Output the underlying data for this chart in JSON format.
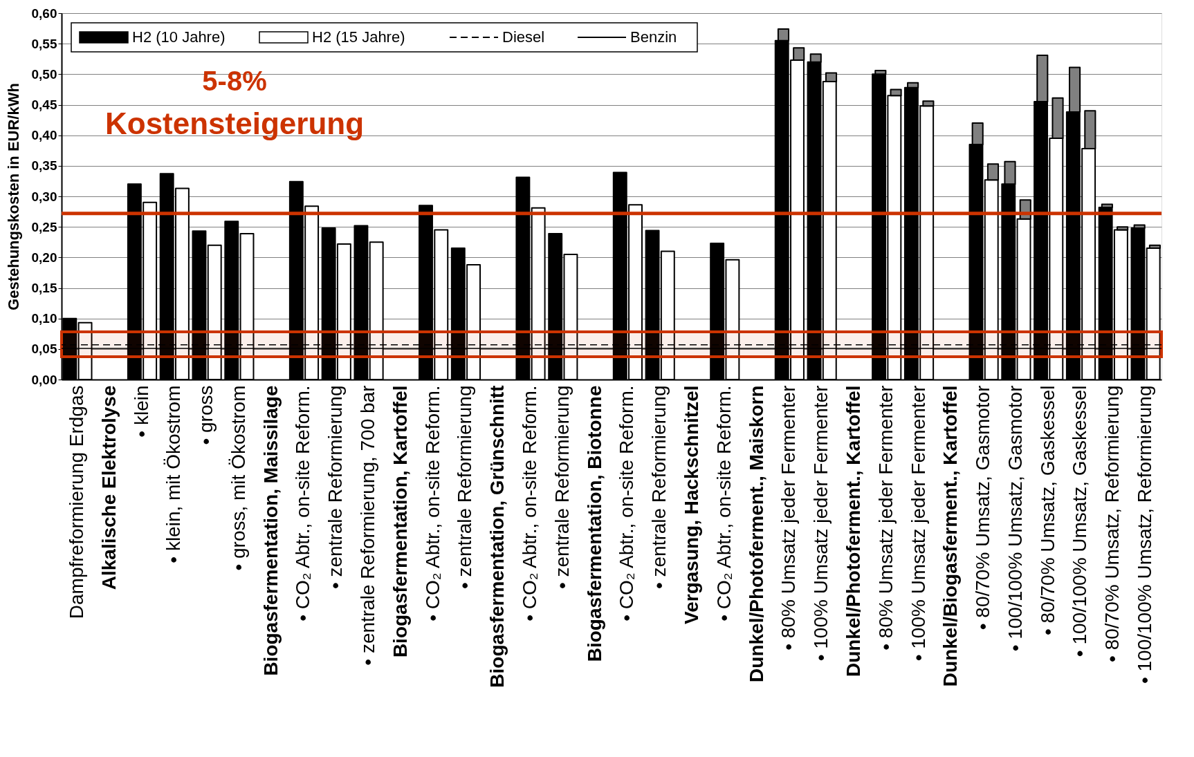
{
  "chart_data": {
    "type": "bar",
    "ylabel": "Gestehungskosten   in EUR/kWh",
    "categories": [
      "Dampfreformierung Erdgas",
      "Alkalische Elektrolyse",
      "• klein",
      "• klein, mit Ökostrom",
      "• gross",
      "• gross, mit Ökostrom",
      "Biogasfermentation, Maissilage",
      "• CO₂ Abtr., on-site Reform.",
      "• zentrale Reformierung",
      "• zentrale Reformierung, 700 bar",
      "Biogasfermentation, Kartoffel",
      "• CO₂ Abtr., on-site Reform.",
      "• zentrale Reformierung",
      "Biogasfermentation, Grünschnitt",
      "• CO₂ Abtr., on-site Reform.",
      "• zentrale Reformierung",
      "Biogasfermentation, Biotonne",
      "• CO₂ Abtr., on-site Reform.",
      "• zentrale Reformierung",
      "Vergasung, Hackschnitzel",
      "• CO₂ Abtr., on-site Reform.",
      "Dunkel/Photoferment., Maiskorn",
      "• 80% Umsatz jeder Fermenter",
      "• 100% Umsatz jeder Fermenter",
      "Dunkel/Photoferment., Kartoffel",
      "• 80% Umsatz jeder Fermenter",
      "• 100% Umsatz jeder Fermenter",
      "Dunkel/Biogasferment., Kartoffel",
      "• 80/70% Umsatz, Gasmotor",
      "• 100/100% Umsatz, Gasmotor",
      "• 80/70% Umsatz, Gaskessel",
      "• 100/100% Umsatz, Gaskessel",
      "• 80/70% Umsatz, Reformierung",
      "• 100/100% Umsatz, Reformierung"
    ],
    "series": [
      {
        "name": "H2 (10 Jahre)",
        "color": "#000000",
        "values": [
          0.1,
          null,
          0.32,
          0.337,
          0.243,
          0.259,
          null,
          0.324,
          0.248,
          0.252,
          null,
          0.285,
          0.215,
          null,
          0.331,
          0.239,
          null,
          0.339,
          0.244,
          null,
          0.223,
          null,
          0.555,
          0.52,
          null,
          0.5,
          0.478,
          null,
          0.385,
          0.32,
          0.455,
          0.438,
          0.282,
          0.248
        ]
      },
      {
        "color": "#808080",
        "values": [
          null,
          null,
          null,
          null,
          null,
          null,
          null,
          null,
          null,
          null,
          null,
          null,
          null,
          null,
          null,
          null,
          null,
          null,
          null,
          null,
          null,
          null,
          0.019,
          0.013,
          null,
          0.006,
          0.008,
          null,
          0.035,
          0.037,
          0.076,
          0.073,
          0.005,
          0.005
        ],
        "base": [
          null,
          null,
          null,
          null,
          null,
          null,
          null,
          null,
          null,
          null,
          null,
          null,
          null,
          null,
          null,
          null,
          null,
          null,
          null,
          null,
          null,
          null,
          0.555,
          0.52,
          null,
          0.5,
          0.478,
          null,
          0.385,
          0.32,
          0.455,
          0.438,
          0.282,
          0.248
        ]
      },
      {
        "name": "H2 (15 Jahre)",
        "color": "#ffffff",
        "values": [
          0.093,
          null,
          0.29,
          0.313,
          0.22,
          0.239,
          null,
          0.284,
          0.222,
          0.225,
          null,
          0.245,
          0.188,
          null,
          0.281,
          0.205,
          null,
          0.286,
          0.21,
          null,
          0.196,
          null,
          0.523,
          0.488,
          null,
          0.465,
          0.448,
          null,
          0.327,
          0.263,
          0.395,
          0.378,
          0.245,
          0.215
        ]
      },
      {
        "color": "#808080",
        "values": [
          null,
          null,
          null,
          null,
          null,
          null,
          null,
          null,
          null,
          null,
          null,
          null,
          null,
          null,
          null,
          null,
          null,
          null,
          null,
          null,
          null,
          null,
          0.02,
          0.014,
          null,
          0.01,
          0.008,
          null,
          0.026,
          0.031,
          0.066,
          0.062,
          0.005,
          0.005
        ],
        "base": [
          null,
          null,
          null,
          null,
          null,
          null,
          null,
          null,
          null,
          null,
          null,
          null,
          null,
          null,
          null,
          null,
          null,
          null,
          null,
          null,
          null,
          null,
          0.523,
          0.488,
          null,
          0.465,
          0.448,
          null,
          0.327,
          0.263,
          0.395,
          0.378,
          0.245,
          0.215
        ]
      }
    ],
    "ylim": [
      0,
      0.6
    ],
    "yticks": [
      {
        "value": 0,
        "label": "0,00"
      },
      {
        "value": 0.05,
        "label": "0,05"
      },
      {
        "value": 0.1,
        "label": "0,10"
      },
      {
        "value": 0.15,
        "label": "0,15"
      },
      {
        "value": 0.2,
        "label": "0,20"
      },
      {
        "value": 0.25,
        "label": "0,25"
      },
      {
        "value": 0.3,
        "label": "0,30"
      },
      {
        "value": 0.35,
        "label": "0,35"
      },
      {
        "value": 0.4,
        "label": "0,40"
      },
      {
        "value": 0.45,
        "label": "0,45"
      },
      {
        "value": 0.5,
        "label": "0,50"
      },
      {
        "value": 0.55,
        "label": "0,55"
      },
      {
        "value": 0.6,
        "label": "0,60"
      }
    ],
    "ref_lines": [
      {
        "axis": "y",
        "value": 0.057,
        "label": "Diesel",
        "color": "#000000",
        "line_style": "dashed"
      },
      {
        "axis": "y",
        "value": 0.051,
        "label": "Benzin",
        "color": "#000000",
        "line_style": "solid"
      },
      {
        "axis": "y",
        "value": 0.272,
        "color": "#cc3300",
        "line_style": "solid"
      }
    ],
    "bands": [
      {
        "axis": "y",
        "from": 0.0375,
        "to": 0.078,
        "color": "#cc3300"
      }
    ],
    "annotations": [
      "5-8%",
      "Kostensteigerung"
    ],
    "grid": "y",
    "legend": "top left"
  }
}
